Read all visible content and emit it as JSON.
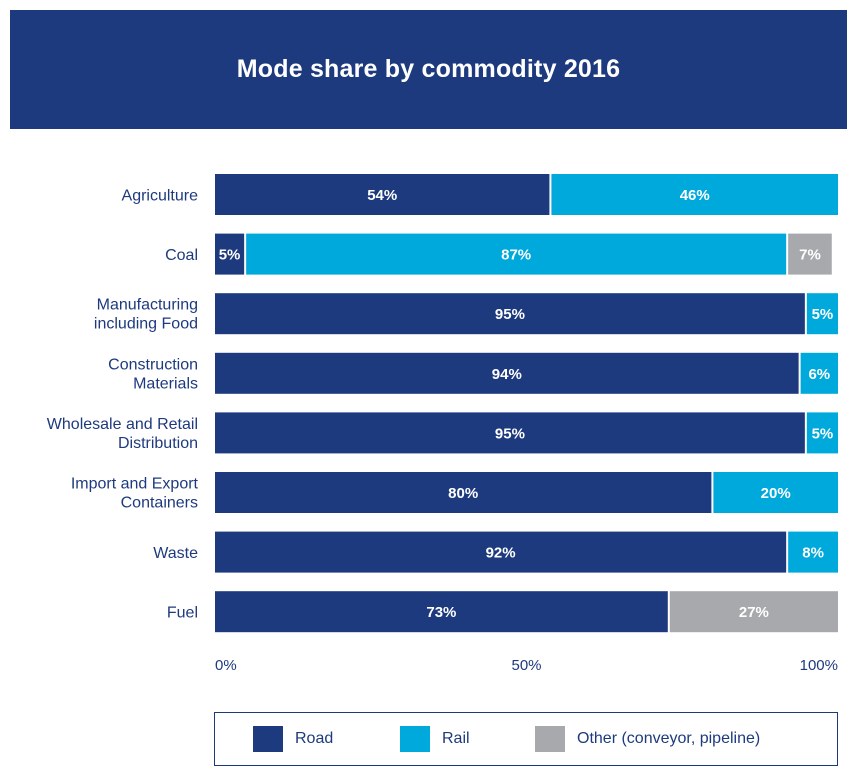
{
  "chart_data": {
    "type": "bar",
    "orientation": "horizontal",
    "stacked": true,
    "title": "Mode share by commodity 2016",
    "categories": [
      "Agriculture",
      "Coal",
      "Manufacturing including Food",
      "Construction Materials",
      "Wholesale and Retail Distribution",
      "Import and Export Containers",
      "Waste",
      "Fuel"
    ],
    "category_lines": [
      [
        "Agriculture"
      ],
      [
        "Coal"
      ],
      [
        "Manufacturing",
        "including Food"
      ],
      [
        "Construction",
        "Materials"
      ],
      [
        "Wholesale and Retail",
        "Distribution"
      ],
      [
        "Import and Export",
        "Containers"
      ],
      [
        "Waste"
      ],
      [
        "Fuel"
      ]
    ],
    "series": [
      {
        "name": "Road",
        "color": "#1e3a7e",
        "values": [
          54,
          5,
          95,
          94,
          95,
          80,
          92,
          73
        ]
      },
      {
        "name": "Rail",
        "color": "#00a9dc",
        "values": [
          46,
          87,
          5,
          6,
          5,
          20,
          8,
          0
        ]
      },
      {
        "name": "Other (conveyor, pipeline)",
        "color": "#a7a9ac",
        "values": [
          0,
          7,
          0,
          0,
          0,
          0,
          0,
          27
        ]
      }
    ],
    "xlim": [
      0,
      100
    ],
    "xticks": [
      "0%",
      "50%",
      "100%"
    ],
    "value_suffix": "%",
    "legend_position": "bottom",
    "grid": false
  }
}
